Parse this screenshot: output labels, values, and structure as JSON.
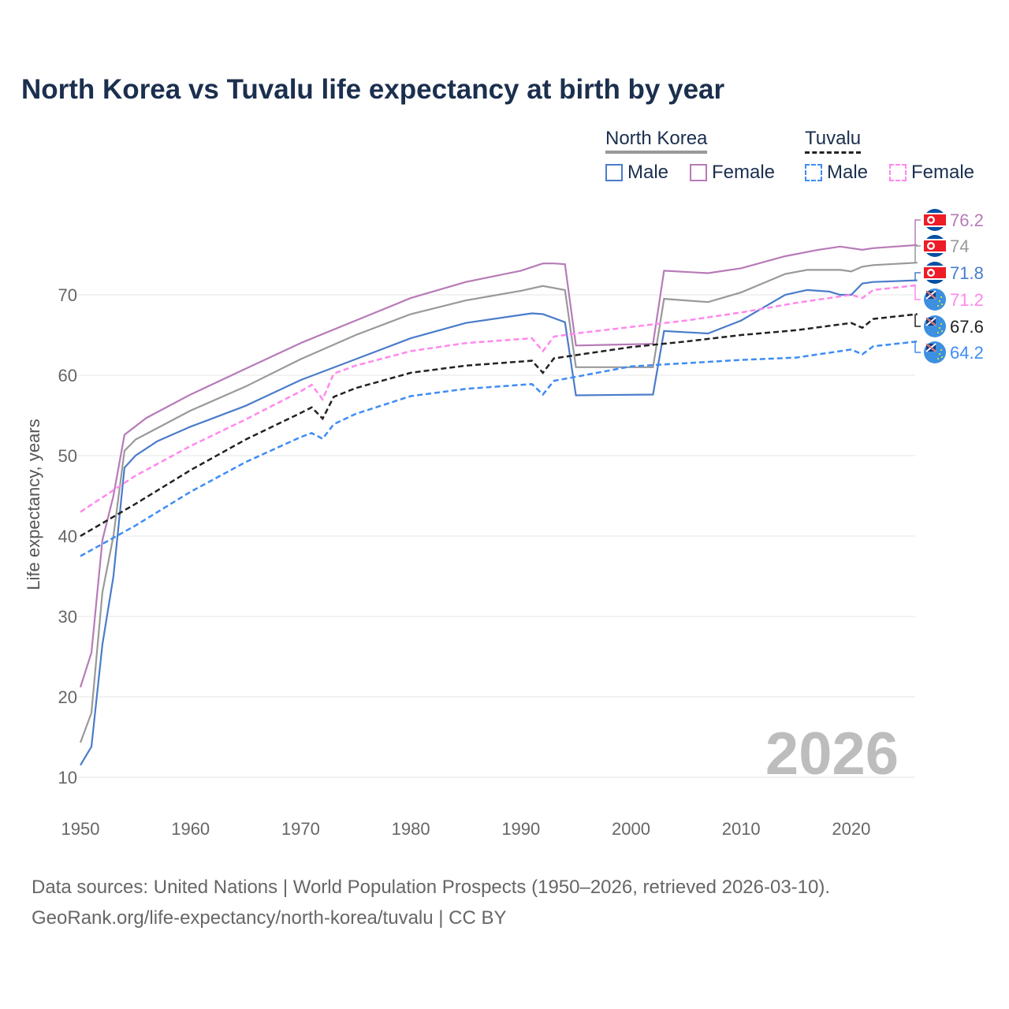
{
  "title": "North Korea vs Tuvalu life expectancy at birth by year",
  "legend": {
    "groups": [
      {
        "name": "North Korea",
        "color": "#999999",
        "dashed": false
      },
      {
        "name": "Tuvalu",
        "color": "#222222",
        "dashed": true
      }
    ],
    "items": [
      {
        "label": "Male",
        "color": "#4a7cc9",
        "dashed": false
      },
      {
        "label": "Female",
        "color": "#b77bb7",
        "dashed": false
      },
      {
        "label": "Male",
        "color": "#3f8cf5",
        "dashed": true
      },
      {
        "label": "Female",
        "color": "#ff88ee",
        "dashed": true
      }
    ]
  },
  "watermark_year": "2026",
  "source": {
    "line1": "Data sources: United Nations | World Population Prospects (1950–2026, retrieved 2026-03-10).",
    "line2": "GeoRank.org/life-expectancy/north-korea/tuvalu | CC BY"
  },
  "chart_data": {
    "type": "line",
    "title": "North Korea vs Tuvalu life expectancy at birth by year",
    "xlabel": "",
    "ylabel": "Life expectancy, years",
    "xlim": [
      1950,
      2026
    ],
    "ylim": [
      8,
      82
    ],
    "xticks": [
      1950,
      1960,
      1970,
      1980,
      1990,
      2000,
      2010,
      2020
    ],
    "yticks": [
      10,
      20,
      30,
      40,
      50,
      60,
      70
    ],
    "grid": true,
    "series": [
      {
        "name": "North Korea Female",
        "country": "North Korea",
        "color": "#b77bb7",
        "dashed": false,
        "end_label": "76.2",
        "points": [
          [
            1950,
            21.2
          ],
          [
            1951,
            25.5
          ],
          [
            1952,
            39.5
          ],
          [
            1953,
            45
          ],
          [
            1954,
            52.6
          ],
          [
            1956,
            54.7
          ],
          [
            1960,
            57.6
          ],
          [
            1965,
            60.8
          ],
          [
            1970,
            64
          ],
          [
            1975,
            66.8
          ],
          [
            1980,
            69.6
          ],
          [
            1985,
            71.6
          ],
          [
            1990,
            73
          ],
          [
            1992,
            73.9
          ],
          [
            1993,
            73.9
          ],
          [
            1994,
            73.8
          ],
          [
            1995,
            63.7
          ],
          [
            2002,
            63.9
          ],
          [
            2003,
            73
          ],
          [
            2007,
            72.7
          ],
          [
            2010,
            73.3
          ],
          [
            2014,
            74.8
          ],
          [
            2017,
            75.6
          ],
          [
            2019,
            76
          ],
          [
            2021,
            75.6
          ],
          [
            2022,
            75.8
          ],
          [
            2026,
            76.2
          ]
        ]
      },
      {
        "name": "North Korea",
        "country": "North Korea",
        "color": "#999999",
        "dashed": false,
        "end_label": "74",
        "points": [
          [
            1950,
            14.3
          ],
          [
            1951,
            18
          ],
          [
            1952,
            33
          ],
          [
            1953,
            40
          ],
          [
            1954,
            50.6
          ],
          [
            1955,
            52
          ],
          [
            1960,
            55.6
          ],
          [
            1965,
            58.6
          ],
          [
            1970,
            62
          ],
          [
            1975,
            65
          ],
          [
            1980,
            67.6
          ],
          [
            1985,
            69.3
          ],
          [
            1990,
            70.5
          ],
          [
            1992,
            71.1
          ],
          [
            1994,
            70.6
          ],
          [
            1995,
            61
          ],
          [
            2002,
            61
          ],
          [
            2003,
            69.5
          ],
          [
            2007,
            69.1
          ],
          [
            2010,
            70.3
          ],
          [
            2014,
            72.6
          ],
          [
            2016,
            73.1
          ],
          [
            2019,
            73.1
          ],
          [
            2020,
            72.9
          ],
          [
            2021,
            73.5
          ],
          [
            2022,
            73.7
          ],
          [
            2026,
            74
          ]
        ]
      },
      {
        "name": "North Korea Male",
        "country": "North Korea",
        "color": "#4a7cc9",
        "dashed": false,
        "end_label": "71.8",
        "points": [
          [
            1950,
            11.5
          ],
          [
            1951,
            13.8
          ],
          [
            1952,
            26.5
          ],
          [
            1953,
            35
          ],
          [
            1954,
            48.5
          ],
          [
            1955,
            50
          ],
          [
            1957,
            51.8
          ],
          [
            1960,
            53.6
          ],
          [
            1965,
            56.2
          ],
          [
            1970,
            59.4
          ],
          [
            1975,
            62
          ],
          [
            1980,
            64.6
          ],
          [
            1985,
            66.5
          ],
          [
            1990,
            67.5
          ],
          [
            1991,
            67.7
          ],
          [
            1992,
            67.6
          ],
          [
            1994,
            66.6
          ],
          [
            1995,
            57.5
          ],
          [
            2002,
            57.6
          ],
          [
            2003,
            65.5
          ],
          [
            2007,
            65.2
          ],
          [
            2010,
            66.8
          ],
          [
            2014,
            70
          ],
          [
            2016,
            70.6
          ],
          [
            2018,
            70.4
          ],
          [
            2019,
            70
          ],
          [
            2020,
            70
          ],
          [
            2021,
            71.4
          ],
          [
            2022,
            71.6
          ],
          [
            2026,
            71.8
          ]
        ]
      },
      {
        "name": "Tuvalu Female",
        "country": "Tuvalu",
        "color": "#ff88ee",
        "dashed": true,
        "end_label": "71.2",
        "points": [
          [
            1950,
            43
          ],
          [
            1955,
            47.5
          ],
          [
            1960,
            51.2
          ],
          [
            1965,
            54.5
          ],
          [
            1970,
            58
          ],
          [
            1971,
            58.8
          ],
          [
            1972,
            57
          ],
          [
            1973,
            60.2
          ],
          [
            1975,
            61.2
          ],
          [
            1980,
            63
          ],
          [
            1985,
            64
          ],
          [
            1991,
            64.6
          ],
          [
            1992,
            63
          ],
          [
            1993,
            64.8
          ],
          [
            1995,
            65.2
          ],
          [
            2000,
            66
          ],
          [
            2005,
            66.8
          ],
          [
            2010,
            67.8
          ],
          [
            2015,
            69
          ],
          [
            2020,
            70
          ],
          [
            2021,
            69.6
          ],
          [
            2022,
            70.6
          ],
          [
            2026,
            71.2
          ]
        ]
      },
      {
        "name": "Tuvalu",
        "country": "Tuvalu",
        "color": "#222222",
        "dashed": true,
        "end_label": "67.6",
        "points": [
          [
            1950,
            40
          ],
          [
            1955,
            44
          ],
          [
            1960,
            48.2
          ],
          [
            1965,
            52
          ],
          [
            1970,
            55.3
          ],
          [
            1971,
            56
          ],
          [
            1972,
            54.6
          ],
          [
            1973,
            57.3
          ],
          [
            1975,
            58.4
          ],
          [
            1980,
            60.3
          ],
          [
            1985,
            61.2
          ],
          [
            1991,
            61.8
          ],
          [
            1992,
            60.3
          ],
          [
            1993,
            62.1
          ],
          [
            1995,
            62.5
          ],
          [
            2000,
            63.5
          ],
          [
            2005,
            64.2
          ],
          [
            2010,
            65
          ],
          [
            2015,
            65.6
          ],
          [
            2020,
            66.5
          ],
          [
            2021,
            65.9
          ],
          [
            2022,
            67
          ],
          [
            2026,
            67.6
          ]
        ]
      },
      {
        "name": "Tuvalu Male",
        "country": "Tuvalu",
        "color": "#3f8cf5",
        "dashed": true,
        "end_label": "64.2",
        "points": [
          [
            1950,
            37.5
          ],
          [
            1955,
            41.3
          ],
          [
            1960,
            45.5
          ],
          [
            1965,
            49.2
          ],
          [
            1970,
            52.3
          ],
          [
            1971,
            52.8
          ],
          [
            1972,
            52.1
          ],
          [
            1973,
            53.9
          ],
          [
            1975,
            55.2
          ],
          [
            1980,
            57.4
          ],
          [
            1985,
            58.3
          ],
          [
            1991,
            58.9
          ],
          [
            1992,
            57.6
          ],
          [
            1993,
            59.3
          ],
          [
            1995,
            59.8
          ],
          [
            2000,
            61.1
          ],
          [
            2005,
            61.5
          ],
          [
            2010,
            61.9
          ],
          [
            2015,
            62.2
          ],
          [
            2020,
            63.2
          ],
          [
            2021,
            62.6
          ],
          [
            2022,
            63.6
          ],
          [
            2026,
            64.2
          ]
        ]
      }
    ]
  }
}
